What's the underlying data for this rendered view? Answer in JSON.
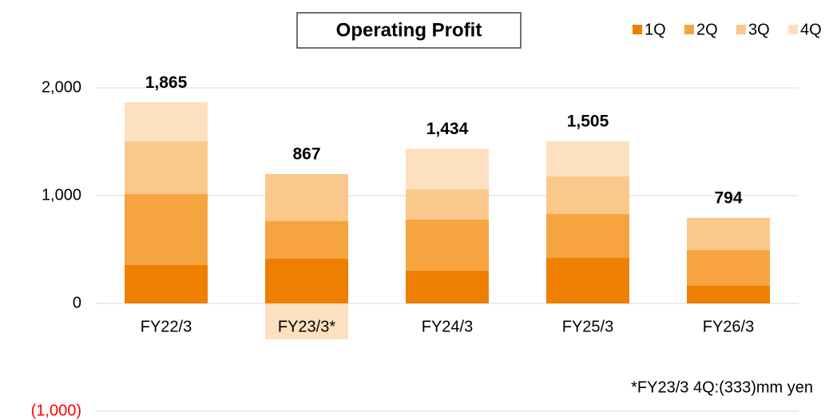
{
  "chart_data": {
    "type": "stacked_bar",
    "title": "Operating Profit",
    "categories": [
      "FY22/3",
      "FY23/3*",
      "FY24/3",
      "FY25/3",
      "FY26/3"
    ],
    "series": [
      {
        "name": "1Q",
        "color": "#ee7f00",
        "values": [
          356,
          415,
          304,
          422,
          163
        ]
      },
      {
        "name": "2Q",
        "color": "#f6a440",
        "values": [
          659,
          348,
          474,
          408,
          333
        ]
      },
      {
        "name": "3Q",
        "color": "#fbc88c",
        "values": [
          489,
          437,
          281,
          348,
          298
        ]
      },
      {
        "name": "4Q",
        "color": "#fde0bf",
        "values": [
          361,
          -333,
          375,
          327,
          null
        ]
      }
    ],
    "totals": [
      1865,
      867,
      1434,
      1505,
      794
    ],
    "total_labels": [
      "1,865",
      "867",
      "1,434",
      "1,505",
      "794"
    ],
    "ylim": [
      -1000,
      2000
    ],
    "yticks": [
      {
        "value": -1000,
        "label": "(1,000)"
      },
      0,
      {
        "value": 1000,
        "label": "1,000"
      },
      {
        "value": 2000,
        "label": "2,000"
      }
    ],
    "grid": true,
    "legend": "top-right",
    "annotation": "*FY23/3 4Q:(333)mm yen"
  }
}
